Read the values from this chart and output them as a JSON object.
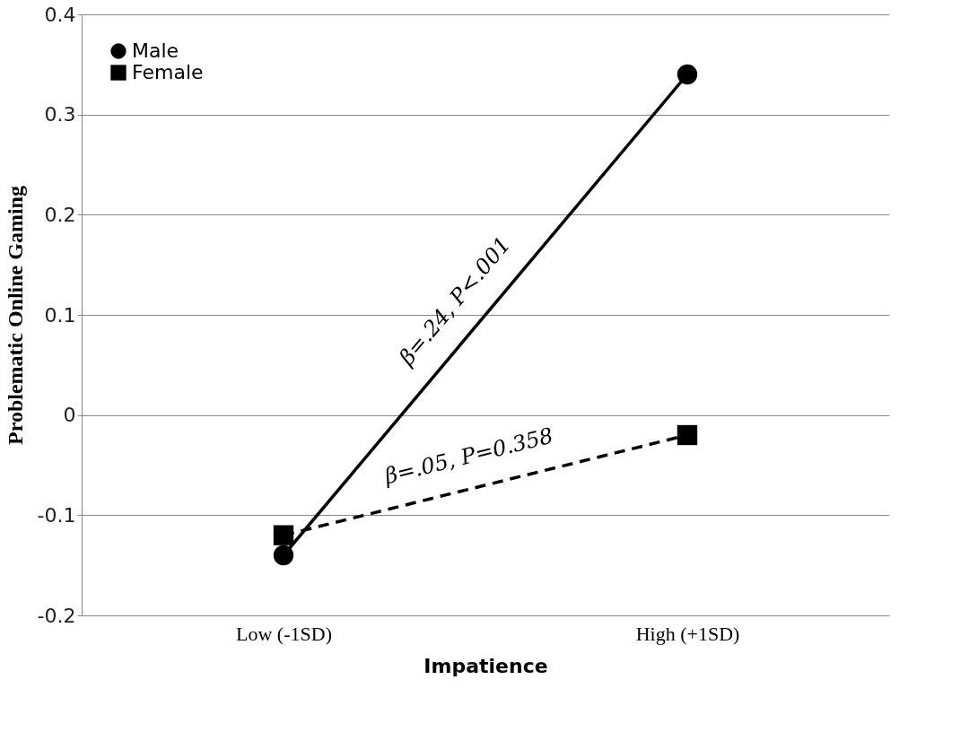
{
  "chart_data": {
    "type": "line",
    "xlabel": "Impatience",
    "ylabel": "Problematic Online Gaming",
    "categories": [
      "Low (-1SD)",
      "High (+1SD)"
    ],
    "series": [
      {
        "name": "Male",
        "color": "#000000",
        "values": [
          -0.14,
          0.34
        ],
        "marker": "circle",
        "line_style": "solid"
      },
      {
        "name": "Female",
        "color": "#000000",
        "values": [
          -0.12,
          -0.02
        ],
        "marker": "square",
        "line_style": "dashed"
      }
    ],
    "ylim": [
      -0.2,
      0.4
    ],
    "yticks": [
      -0.2,
      -0.1,
      0,
      0.1,
      0.2,
      0.3,
      0.4
    ],
    "grid": "y",
    "legend": "top left",
    "annotations": [
      "β=.24, P<.001",
      "β=.05, P=0.358"
    ]
  }
}
